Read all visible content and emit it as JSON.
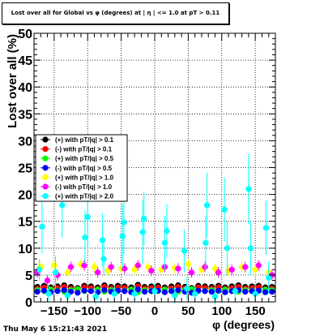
{
  "title": "Lost over all for Global vs φ (degrees) at | η | <= 1.0 at pT > 0.11",
  "timestamp": "Thu May  6 15:21:43 2021",
  "chart_data": {
    "type": "scatter",
    "title": "Lost over all for Global vs φ (degrees) at | η | <= 1.0 at pT > 0.11",
    "xlabel": "φ (degrees)",
    "ylabel": "Lost over all (%)",
    "xlim": [
      -180,
      180
    ],
    "ylim": [
      0,
      50
    ],
    "xticks": [
      -150,
      -100,
      -50,
      0,
      50,
      100,
      150
    ],
    "xtick_labels": [
      "−150",
      "−100",
      "−50",
      "0",
      "50",
      "100",
      "150"
    ],
    "yticks": [
      0,
      5,
      10,
      15,
      20,
      25,
      30,
      35,
      40,
      45,
      50
    ],
    "grid": true,
    "legend_position": "left-middle",
    "series": [
      {
        "name": "(+) with pT/|q| > 0.1",
        "color": "#000000",
        "marker": "circle",
        "x": [
          -175,
          -165,
          -155,
          -145,
          -135,
          -125,
          -115,
          -105,
          -95,
          -85,
          -75,
          -65,
          -55,
          -45,
          -35,
          -25,
          -15,
          -5,
          5,
          15,
          25,
          35,
          45,
          55,
          65,
          75,
          85,
          95,
          105,
          115,
          125,
          135,
          145,
          155,
          165,
          175
        ],
        "values": [
          2.8,
          3.0,
          2.7,
          2.9,
          3.1,
          2.8,
          2.6,
          3.0,
          2.9,
          2.7,
          3.1,
          2.8,
          3.0,
          2.9,
          2.7,
          3.2,
          2.8,
          2.9,
          3.0,
          2.7,
          2.9,
          3.1,
          2.8,
          2.6,
          3.0,
          2.9,
          2.8,
          3.0,
          2.7,
          2.9,
          3.1,
          2.8,
          2.9,
          3.0,
          2.7,
          2.8
        ],
        "errors": [
          0.3,
          0.3,
          0.3,
          0.3,
          0.3,
          0.3,
          0.3,
          0.3,
          0.3,
          0.3,
          0.3,
          0.3,
          0.3,
          0.3,
          0.3,
          0.3,
          0.3,
          0.3,
          0.3,
          0.3,
          0.3,
          0.3,
          0.3,
          0.3,
          0.3,
          0.3,
          0.3,
          0.3,
          0.3,
          0.3,
          0.3,
          0.3,
          0.3,
          0.3,
          0.3,
          0.3
        ]
      },
      {
        "name": "(-) with pT/|q| > 0.1",
        "color": "#ff0000",
        "marker": "circle",
        "x": [
          -175,
          -165,
          -155,
          -145,
          -135,
          -125,
          -115,
          -105,
          -95,
          -85,
          -75,
          -65,
          -55,
          -45,
          -35,
          -25,
          -15,
          -5,
          5,
          15,
          25,
          35,
          45,
          55,
          65,
          75,
          85,
          95,
          105,
          115,
          125,
          135,
          145,
          155,
          165,
          175
        ],
        "values": [
          2.5,
          2.7,
          2.4,
          2.6,
          2.8,
          2.5,
          2.3,
          2.7,
          2.6,
          2.4,
          2.8,
          2.5,
          2.7,
          2.6,
          2.4,
          2.9,
          2.5,
          2.6,
          2.7,
          2.4,
          2.6,
          2.8,
          2.5,
          2.3,
          2.7,
          2.6,
          2.5,
          2.7,
          2.4,
          2.6,
          2.8,
          2.5,
          2.6,
          2.7,
          2.4,
          2.5
        ],
        "errors": [
          0.3,
          0.3,
          0.3,
          0.3,
          0.3,
          0.3,
          0.3,
          0.3,
          0.3,
          0.3,
          0.3,
          0.3,
          0.3,
          0.3,
          0.3,
          0.3,
          0.3,
          0.3,
          0.3,
          0.3,
          0.3,
          0.3,
          0.3,
          0.3,
          0.3,
          0.3,
          0.3,
          0.3,
          0.3,
          0.3,
          0.3,
          0.3,
          0.3,
          0.3,
          0.3,
          0.3
        ]
      },
      {
        "name": "(+) with pT/|q| > 0.5",
        "color": "#00ff00",
        "marker": "circle",
        "x": [
          -175,
          -165,
          -155,
          -145,
          -135,
          -125,
          -115,
          -105,
          -95,
          -85,
          -75,
          -65,
          -55,
          -45,
          -35,
          -25,
          -15,
          -5,
          5,
          15,
          25,
          35,
          45,
          55,
          65,
          75,
          85,
          95,
          105,
          115,
          125,
          135,
          145,
          155,
          165,
          175
        ],
        "values": [
          2.2,
          2.0,
          2.3,
          2.1,
          1.9,
          2.2,
          2.4,
          2.0,
          2.1,
          2.3,
          1.9,
          2.2,
          2.0,
          2.1,
          2.3,
          1.8,
          2.2,
          2.1,
          2.0,
          2.3,
          2.1,
          1.9,
          2.2,
          2.4,
          2.0,
          2.1,
          2.2,
          2.0,
          2.3,
          2.1,
          1.9,
          2.2,
          2.1,
          2.0,
          2.3,
          2.2
        ],
        "errors": [
          0.4,
          0.4,
          0.4,
          0.4,
          0.4,
          0.4,
          0.4,
          0.4,
          0.4,
          0.4,
          0.4,
          0.4,
          0.4,
          0.4,
          0.4,
          0.4,
          0.4,
          0.4,
          0.4,
          0.4,
          0.4,
          0.4,
          0.4,
          0.4,
          0.4,
          0.4,
          0.4,
          0.4,
          0.4,
          0.4,
          0.4,
          0.4,
          0.4,
          0.4,
          0.4,
          0.4
        ]
      },
      {
        "name": "(-) with pT/|q| > 0.5",
        "color": "#0000ff",
        "marker": "circle",
        "x": [
          -175,
          -165,
          -155,
          -145,
          -135,
          -125,
          -115,
          -105,
          -95,
          -85,
          -75,
          -65,
          -55,
          -45,
          -35,
          -25,
          -15,
          -5,
          5,
          15,
          25,
          35,
          45,
          55,
          65,
          75,
          85,
          95,
          105,
          115,
          125,
          135,
          145,
          155,
          165,
          175
        ],
        "values": [
          1.9,
          2.1,
          1.8,
          2.0,
          2.2,
          1.9,
          1.7,
          2.1,
          2.0,
          1.8,
          2.2,
          1.9,
          2.1,
          2.0,
          1.8,
          2.3,
          1.9,
          2.0,
          2.1,
          1.8,
          2.0,
          2.2,
          1.9,
          1.7,
          2.1,
          2.0,
          1.9,
          2.1,
          1.8,
          2.0,
          2.2,
          1.9,
          2.0,
          2.1,
          1.8,
          1.9
        ],
        "errors": [
          0.4,
          0.4,
          0.4,
          0.4,
          0.4,
          0.4,
          0.4,
          0.4,
          0.4,
          0.4,
          0.4,
          0.4,
          0.4,
          0.4,
          0.4,
          0.4,
          0.4,
          0.4,
          0.4,
          0.4,
          0.4,
          0.4,
          0.4,
          0.4,
          0.4,
          0.4,
          0.4,
          0.4,
          0.4,
          0.4,
          0.4,
          0.4,
          0.4,
          0.4,
          0.4,
          0.4
        ]
      },
      {
        "name": "(+) with pT/|q| > 1.0",
        "color": "#ffff00",
        "marker": "circle",
        "x": [
          -170,
          -150,
          -130,
          -110,
          -90,
          -70,
          -50,
          -30,
          -10,
          10,
          30,
          50,
          70,
          90,
          110,
          130,
          150,
          170
        ],
        "values": [
          6.5,
          6.8,
          5.5,
          7.0,
          6.5,
          5.8,
          6.2,
          6.0,
          6.5,
          6.0,
          6.3,
          7.0,
          6.0,
          6.2,
          5.8,
          6.5,
          6.0,
          5.5
        ],
        "errors": [
          1.0,
          1.0,
          1.0,
          1.0,
          1.0,
          1.0,
          1.0,
          1.0,
          1.0,
          1.0,
          1.0,
          1.0,
          1.0,
          1.0,
          1.0,
          1.0,
          1.0,
          1.0
        ]
      },
      {
        "name": "(-) with pT/|q| > 1.0",
        "color": "#ff00ff",
        "marker": "circle",
        "x": [
          -175,
          -160,
          -145,
          -125,
          -105,
          -85,
          -65,
          -45,
          -25,
          -5,
          15,
          35,
          55,
          75,
          95,
          115,
          135,
          155,
          175
        ],
        "values": [
          5.5,
          4.0,
          5.0,
          6.5,
          6.8,
          5.5,
          6.5,
          6.2,
          6.8,
          5.8,
          6.5,
          6.2,
          5.5,
          6.5,
          5.5,
          6.0,
          6.5,
          6.8,
          5.0
        ],
        "errors": [
          1.0,
          1.0,
          1.0,
          1.0,
          1.0,
          1.0,
          1.0,
          1.0,
          1.0,
          1.0,
          1.0,
          1.0,
          1.0,
          1.0,
          1.0,
          1.0,
          1.0,
          1.0,
          1.0
        ]
      },
      {
        "name": "(+) with pT/|q| > 2.0",
        "color": "#00ffff",
        "marker": "circle",
        "x": [
          -172,
          -168,
          -148,
          -138,
          -104,
          -100,
          -78,
          -76,
          -48,
          -46,
          -18,
          -16,
          15,
          18,
          44,
          48,
          76,
          78,
          104,
          108,
          140,
          143,
          166,
          170,
          -158,
          -130,
          -88,
          -60,
          -30,
          0,
          30,
          60,
          90,
          120,
          150
        ],
        "values": [
          6.0,
          14.0,
          5.5,
          18.0,
          12.0,
          15.8,
          11.5,
          8.0,
          12.2,
          14.8,
          13.0,
          15.5,
          11.0,
          13.2,
          9.5,
          2.5,
          11.0,
          18.0,
          17.2,
          10.0,
          21.0,
          10.0,
          13.8,
          4.5,
          1.5,
          1.2,
          1.0,
          1.5,
          1.5,
          2.0,
          1.2,
          1.5,
          1.0,
          2.0,
          1.5
        ],
        "errors": [
          2.0,
          5.0,
          3.0,
          6.0,
          5.0,
          6.0,
          5.0,
          3.0,
          6.0,
          6.0,
          6.0,
          5.0,
          5.0,
          5.0,
          4.0,
          2.0,
          5.0,
          6.0,
          6.0,
          5.0,
          6.5,
          5.0,
          5.0,
          3.0,
          1.5,
          1.5,
          1.5,
          1.5,
          1.5,
          1.5,
          1.5,
          1.5,
          1.5,
          1.5,
          1.5
        ]
      }
    ]
  }
}
